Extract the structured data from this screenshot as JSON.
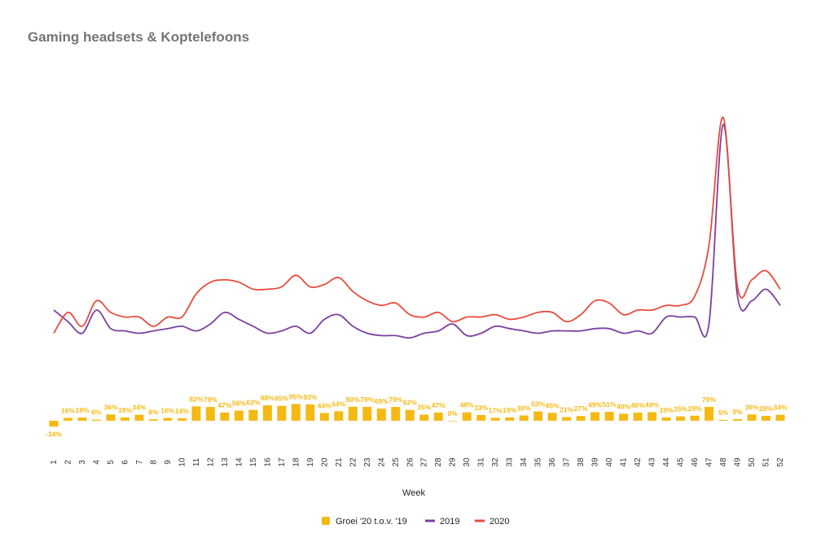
{
  "chart_data": {
    "type": "bar+line",
    "title": "Gaming headsets & Koptelefoons",
    "xlabel": "Week",
    "categories": [
      "1",
      "2",
      "3",
      "4",
      "5",
      "6",
      "7",
      "8",
      "9",
      "10",
      "11",
      "12",
      "13",
      "14",
      "15",
      "16",
      "17",
      "18",
      "19",
      "20",
      "21",
      "22",
      "23",
      "24",
      "25",
      "26",
      "27",
      "28",
      "29",
      "30",
      "31",
      "32",
      "33",
      "34",
      "35",
      "36",
      "37",
      "38",
      "39",
      "40",
      "41",
      "42",
      "43",
      "44",
      "45",
      "46",
      "47",
      "48",
      "49",
      "50",
      "51",
      "52"
    ],
    "bar_series": {
      "name": "Groei '20 t.o.v. '19",
      "color": "#f5b914",
      "values": [
        -34,
        16,
        18,
        6,
        36,
        19,
        34,
        8,
        16,
        14,
        82,
        79,
        47,
        58,
        62,
        88,
        85,
        95,
        93,
        44,
        54,
        80,
        79,
        69,
        79,
        62,
        35,
        47,
        0,
        48,
        33,
        17,
        19,
        30,
        53,
        45,
        21,
        27,
        49,
        51,
        40,
        46,
        49,
        19,
        25,
        29,
        79,
        5,
        9,
        36,
        28,
        34
      ],
      "labels": [
        "-34%",
        "16%",
        "18%",
        "6%",
        "36%",
        "19%",
        "34%",
        "8%",
        "16%",
        "14%",
        "82%",
        "79%",
        "47%",
        "58%",
        "62%",
        "88%",
        "85%",
        "95%",
        "93%",
        "44%",
        "54%",
        "80%",
        "79%",
        "69%",
        "79%",
        "62%",
        "35%",
        "47%",
        "0%",
        "48%",
        "33%",
        "17%",
        "19%",
        "30%",
        "53%",
        "45%",
        "21%",
        "27%",
        "49%",
        "51%",
        "40%",
        "46%",
        "49%",
        "19%",
        "25%",
        "29%",
        "79%",
        "5%",
        "9%",
        "36%",
        "28%",
        "34%"
      ]
    },
    "line_series": [
      {
        "name": "2019",
        "color": "#7b3fa0",
        "values": [
          20,
          15,
          10,
          20,
          12,
          11,
          10,
          11,
          12,
          13,
          11,
          14,
          19,
          16,
          13,
          10,
          11,
          13,
          10,
          16,
          18,
          13,
          10,
          9,
          9,
          8,
          10,
          11,
          14,
          9,
          10,
          13,
          12,
          11,
          10,
          11,
          11,
          11,
          12,
          12,
          10,
          11,
          10,
          17,
          17,
          17,
          14,
          100,
          26,
          24,
          29,
          22
        ]
      },
      {
        "name": "2020",
        "color": "#e84c3d",
        "values": [
          10,
          19,
          13,
          24,
          19,
          17,
          17,
          13,
          17,
          17,
          27,
          32,
          33,
          32,
          29,
          29,
          30,
          35,
          30,
          31,
          34,
          28,
          24,
          22,
          23,
          18,
          17,
          19,
          15,
          17,
          17,
          18,
          16,
          17,
          19,
          19,
          15,
          18,
          24,
          23,
          18,
          20,
          20,
          22,
          22,
          26,
          48,
          103,
          30,
          33,
          37,
          29
        ]
      }
    ],
    "legend": {
      "position": "bottom-center",
      "entries": [
        "Groei '20 t.o.v. '19",
        "2019",
        "2020"
      ]
    },
    "grid": false
  }
}
